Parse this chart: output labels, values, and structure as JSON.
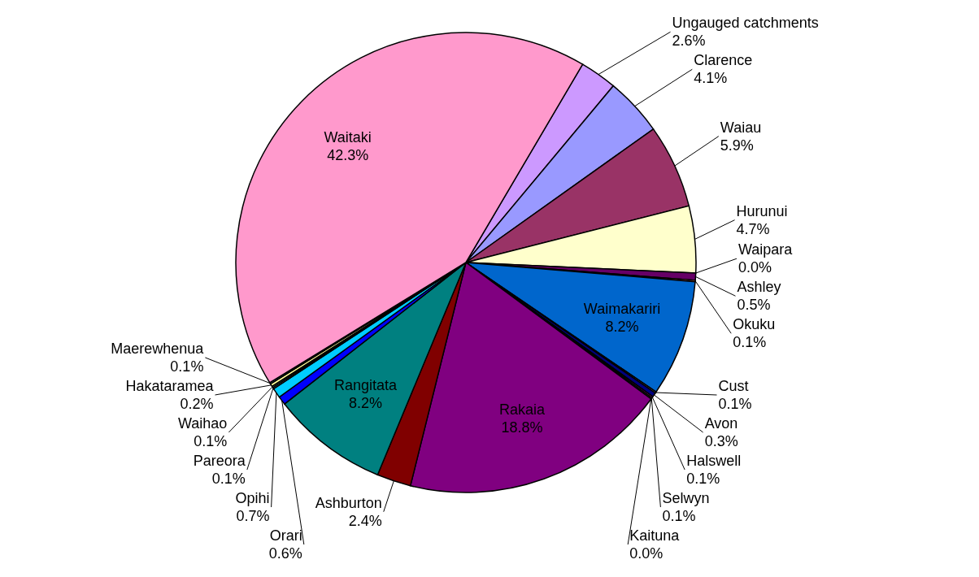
{
  "chart_data": {
    "type": "pie",
    "categories": [
      "Ungauged catchments",
      "Clarence",
      "Waiau",
      "Hurunui",
      "Waipara",
      "Ashley",
      "Okuku",
      "Waimakariri",
      "Cust",
      "Avon",
      "Halswell",
      "Selwyn",
      "Kaituna",
      "Rakaia",
      "Ashburton",
      "Rangitata",
      "Orari",
      "Opihi",
      "Pareora",
      "Waihao",
      "Hakataramea",
      "Maerewhenua",
      "Waitaki"
    ],
    "values": [
      2.6,
      4.1,
      5.9,
      4.7,
      0.0,
      0.5,
      0.1,
      8.2,
      0.1,
      0.3,
      0.1,
      0.1,
      0.0,
      18.8,
      2.4,
      8.2,
      0.6,
      0.7,
      0.1,
      0.1,
      0.2,
      0.1,
      42.3
    ],
    "value_labels": [
      "2.6%",
      "4.1%",
      "5.9%",
      "4.7%",
      "0.0%",
      "0.5%",
      "0.1%",
      "8.2%",
      "0.1%",
      "0.3%",
      "0.1%",
      "0.1%",
      "0.0%",
      "18.8%",
      "2.4%",
      "8.2%",
      "0.6%",
      "0.7%",
      "0.1%",
      "0.1%",
      "0.2%",
      "0.1%",
      "42.3%"
    ],
    "colors": [
      "#cc99ff",
      "#9999ff",
      "#993366",
      "#ffffcc",
      "#ccffff",
      "#660066",
      "#ff8080",
      "#0066cc",
      "#ccccff",
      "#000080",
      "#ff00ff",
      "#ffff00",
      "#00ffff",
      "#800080",
      "#800000",
      "#008080",
      "#0000ff",
      "#00ccff",
      "#ccffff",
      "#ccffcc",
      "#ffff99",
      "#99ccff",
      "#ff99cc"
    ]
  }
}
